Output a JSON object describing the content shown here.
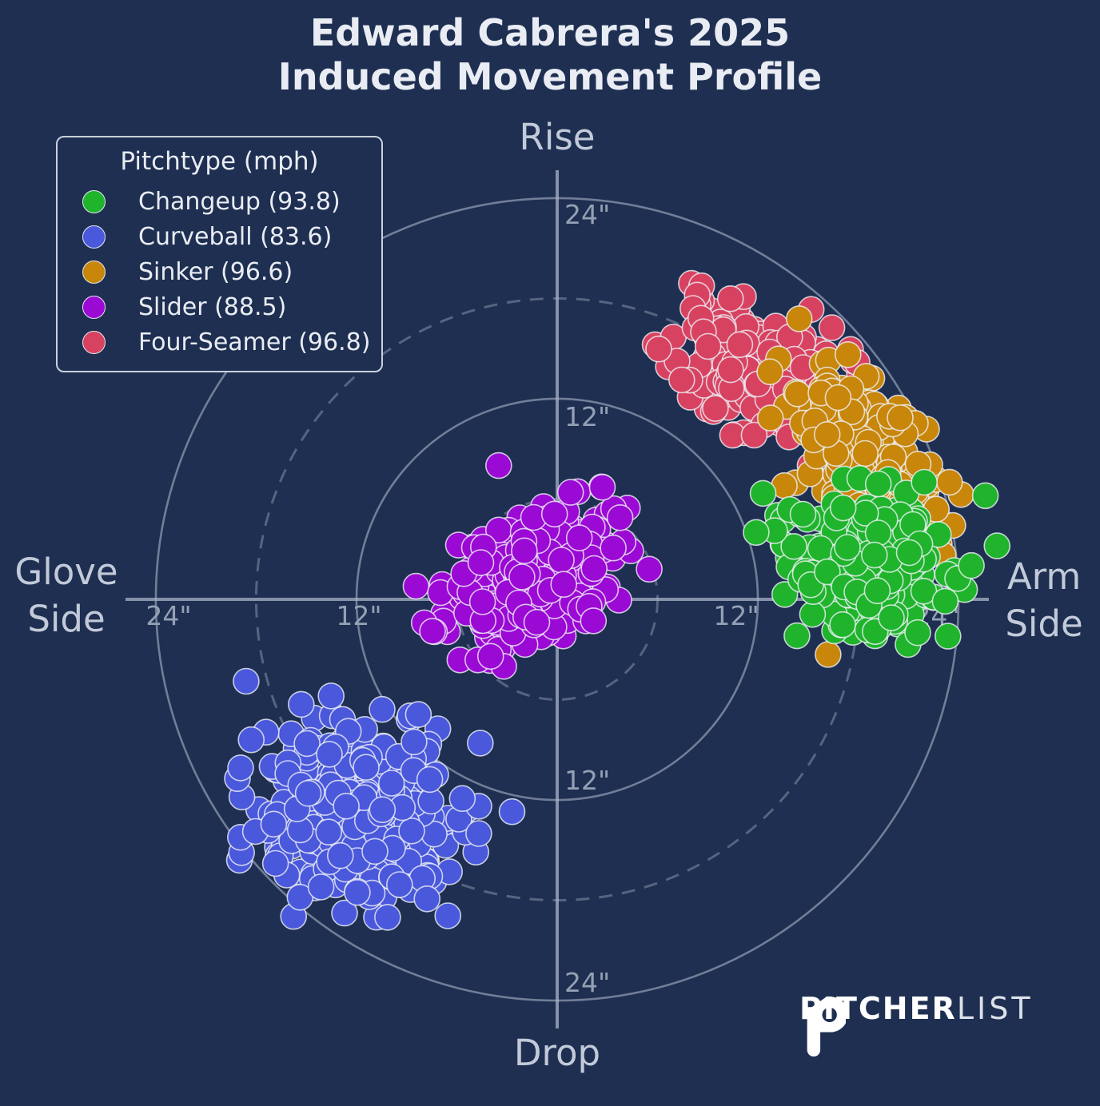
{
  "title": {
    "line1": "Edward Cabrera's 2025",
    "line2": "Induced Movement Profile"
  },
  "axis_labels": {
    "top": "Rise",
    "bottom": "Drop",
    "left_line1": "Glove",
    "left_line2": "Side",
    "right_line1": "Arm",
    "right_line2": "Side"
  },
  "ring_labels": {
    "r12": "12\"",
    "r24": "24\""
  },
  "legend": {
    "title": "Pitchtype (mph)",
    "items": [
      {
        "label": "Changeup (93.8)",
        "color": "#1fb42c"
      },
      {
        "label": "Curveball (83.6)",
        "color": "#4a58dc"
      },
      {
        "label": "Sinker (96.6)",
        "color": "#c8860b"
      },
      {
        "label": "Slider (88.5)",
        "color": "#9b09d4"
      },
      {
        "label": "Four-Seamer (96.8)",
        "color": "#d84261"
      }
    ]
  },
  "logo": {
    "text_bold": "PITCHER",
    "text_light": "LIST"
  },
  "chart_data": {
    "type": "scatter",
    "title": "Edward Cabrera's 2025 Induced Movement Profile",
    "subtitle": "polar induced-movement plot, inches of movement",
    "axes": {
      "up": "Rise",
      "down": "Drop",
      "left": "Glove Side",
      "right": "Arm Side"
    },
    "units": "inches",
    "solid_rings_in": [
      12,
      24
    ],
    "dashed_rings_in": [
      6,
      18
    ],
    "axis_extent_in": 25.8,
    "colors": {
      "background": "#1e2f51",
      "grid": "#aab4c8",
      "marker_edge": "#eef1f6"
    },
    "legend_position": "upper left",
    "series": [
      {
        "name": "Changeup",
        "mph": 93.8,
        "color": "#1fb42c",
        "n": 215,
        "seed": 33,
        "mean": [
          18.7,
          2.0
        ],
        "std": [
          2.5,
          2.3
        ],
        "cor": -0.25,
        "outliers": [
          [
            25.6,
            6.2
          ],
          [
            26.3,
            3.2
          ],
          [
            11.9,
            4.0
          ]
        ]
      },
      {
        "name": "Curveball",
        "mph": 83.6,
        "color": "#4a58dc",
        "n": 330,
        "seed": 55,
        "mean": [
          -11.9,
          -12.9
        ],
        "std": [
          2.9,
          2.7
        ],
        "cor": -0.1,
        "outliers": [
          [
            -18.6,
            -4.9
          ],
          [
            -18.3,
            -8.4
          ],
          [
            -4.6,
            -8.6
          ],
          [
            -2.7,
            -12.7
          ]
        ]
      },
      {
        "name": "Sinker",
        "mph": 96.6,
        "color": "#c8860b",
        "n": 240,
        "seed": 22,
        "mean": [
          18.5,
          8.7
        ],
        "std": [
          2.3,
          2.6
        ],
        "cor": -0.5,
        "outliers": [
          [
            13.5,
            3.3
          ],
          [
            16.2,
            -3.3
          ]
        ]
      },
      {
        "name": "Slider",
        "mph": 88.5,
        "color": "#9b09d4",
        "n": 285,
        "seed": 44,
        "mean": [
          -1.6,
          0.8
        ],
        "std": [
          2.7,
          2.1
        ],
        "cor": 0.5,
        "outliers": [
          [
            -3.5,
            8.0
          ],
          [
            0.8,
            6.4
          ],
          [
            2.7,
            6.7
          ],
          [
            5.5,
            1.8
          ]
        ]
      },
      {
        "name": "Four-Seamer",
        "mph": 96.8,
        "color": "#d84261",
        "n": 190,
        "seed": 11,
        "mean": [
          12.0,
          13.6
        ],
        "std": [
          2.6,
          2.0
        ],
        "cor": -0.35,
        "outliers": []
      }
    ],
    "draw_order": [
      "Four-Seamer",
      "Sinker",
      "Changeup",
      "Slider",
      "Curveball"
    ]
  }
}
